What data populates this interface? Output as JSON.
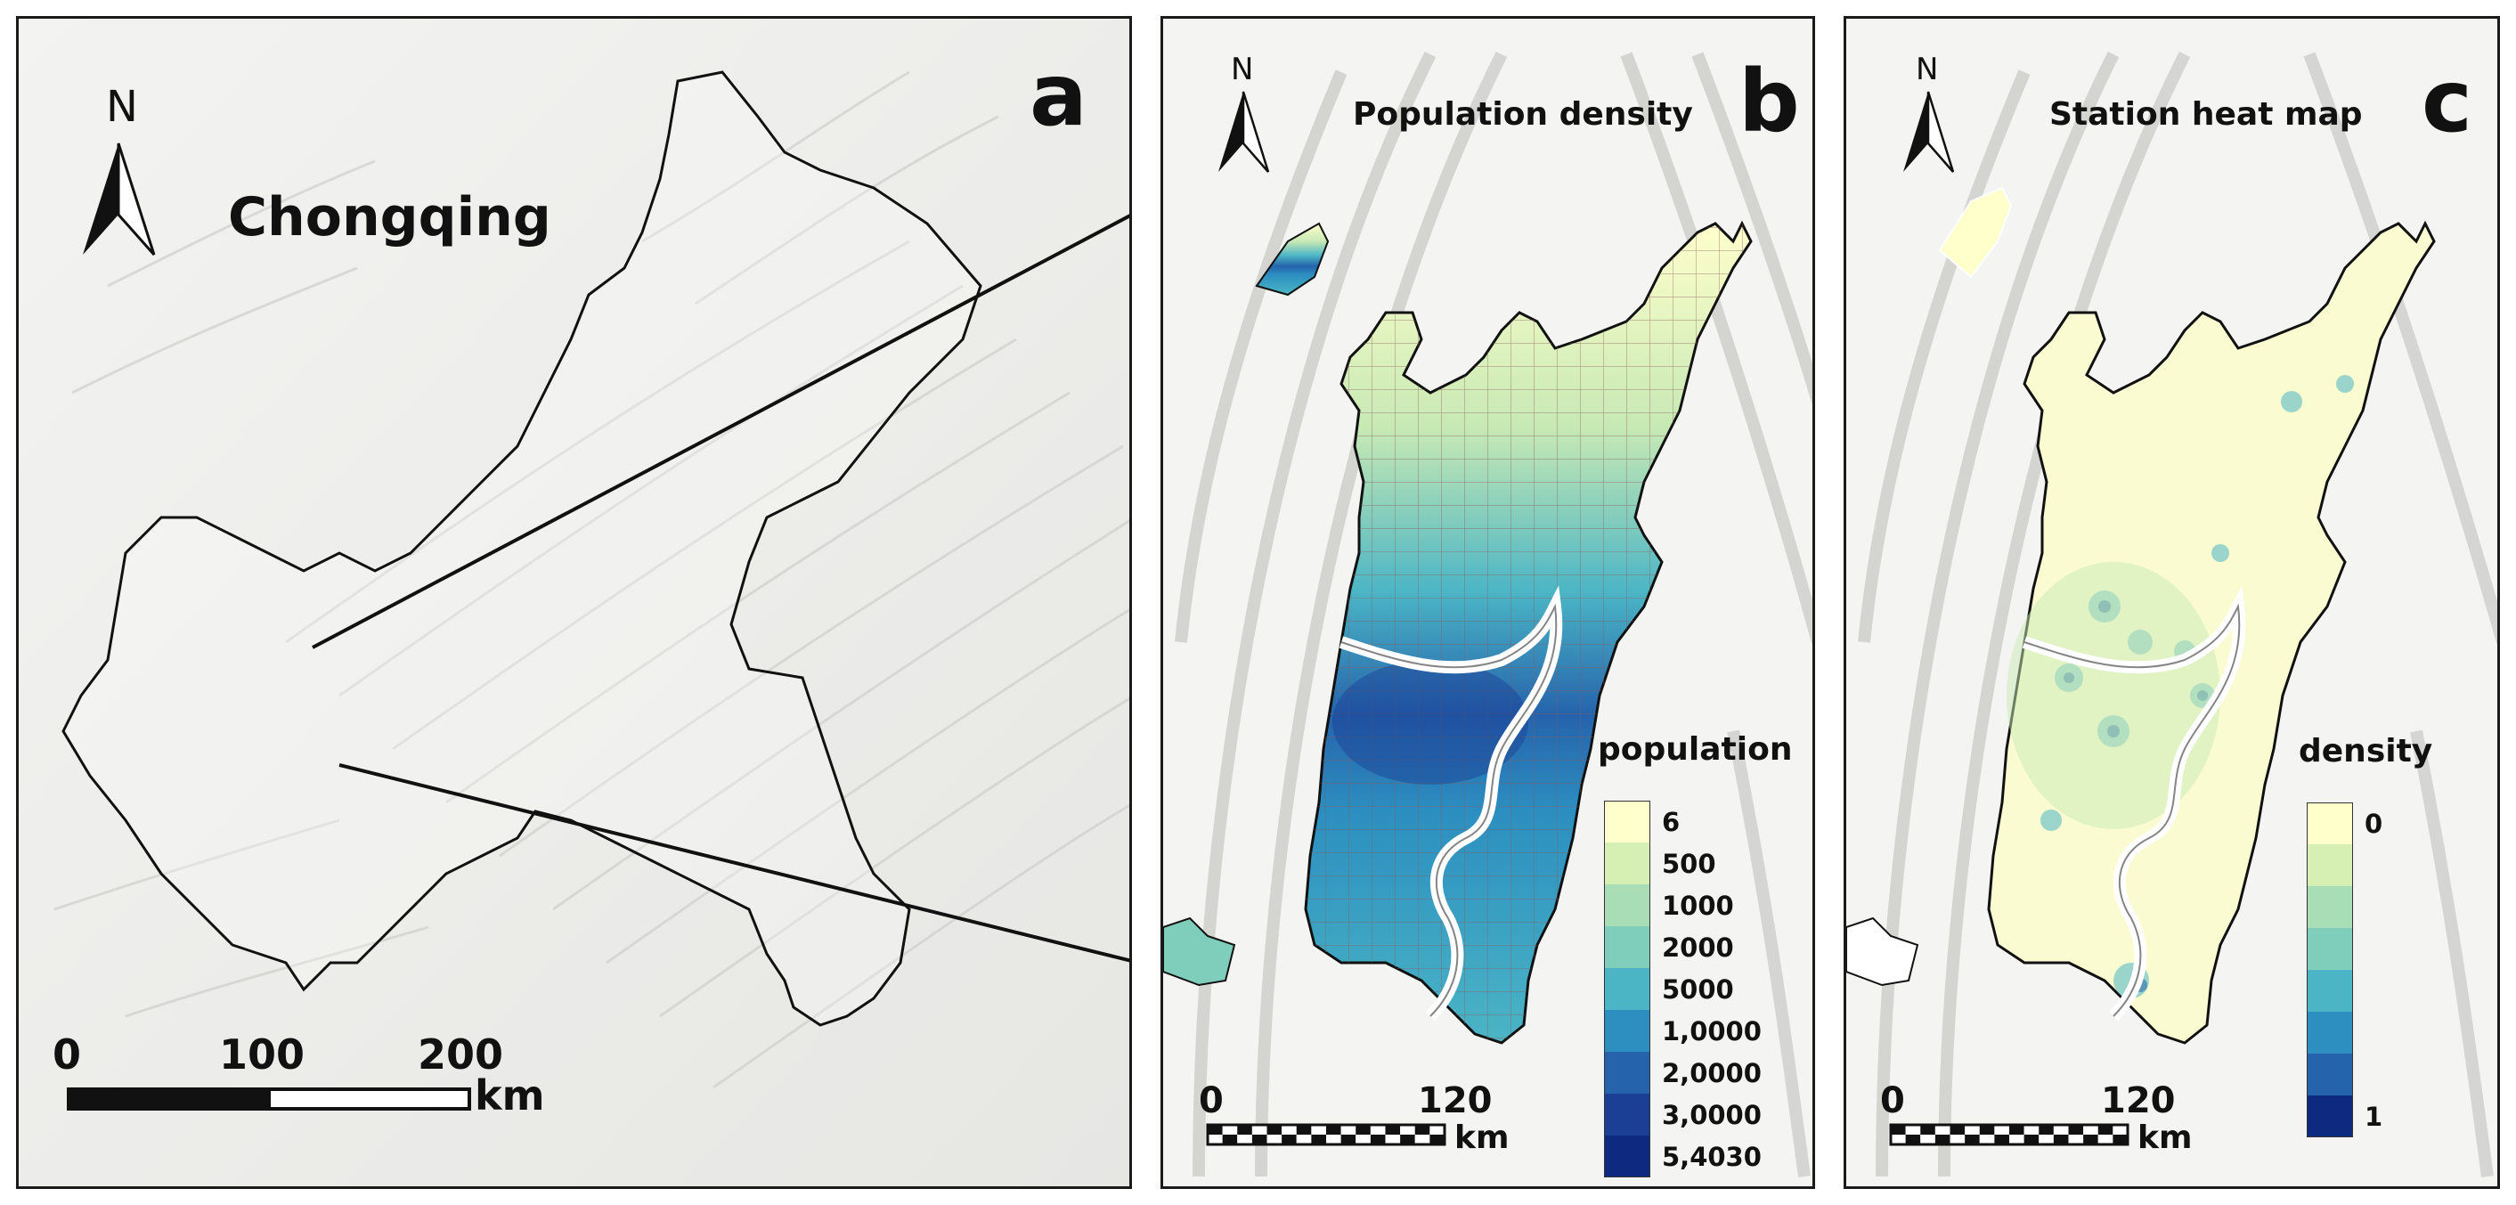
{
  "panel_a": {
    "letter": "a",
    "region_label": "Chongqing",
    "north": "N",
    "scale": {
      "ticks": [
        "0",
        "100",
        "200"
      ],
      "unit": "km"
    }
  },
  "panel_b": {
    "letter": "b",
    "title": "Population density",
    "north": "N",
    "scale": {
      "ticks": [
        "0",
        "120"
      ],
      "unit": "km"
    },
    "legend": {
      "title": "population",
      "labels": [
        "6",
        "500",
        "1000",
        "2000",
        "5000",
        "1,0000",
        "2,0000",
        "3,0000",
        "5,4030"
      ],
      "colors": [
        "#ffffcc",
        "#d6efb3",
        "#a8ddb5",
        "#7fcdbb",
        "#4bb5c5",
        "#2c8fc0",
        "#2563ac",
        "#1a3f94",
        "#0d2a80"
      ]
    }
  },
  "panel_c": {
    "letter": "c",
    "title": "Station heat map",
    "north": "N",
    "scale": {
      "ticks": [
        "0",
        "120"
      ],
      "unit": "km"
    },
    "legend": {
      "title": "density",
      "labels": [
        "0",
        "1"
      ],
      "colors": [
        "#ffffcc",
        "#d6efb3",
        "#a8ddb5",
        "#7fcdbb",
        "#4bb5c5",
        "#2c8fc0",
        "#2563ac",
        "#0d2a80"
      ]
    }
  }
}
